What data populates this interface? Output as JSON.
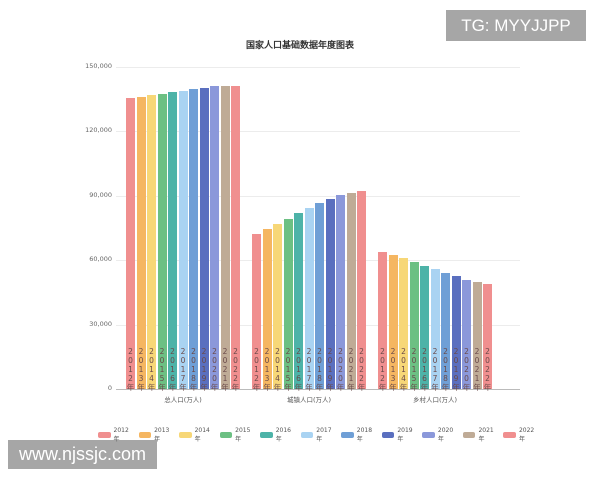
{
  "badges": {
    "tg": "TG: MYYJJPP",
    "web": "www.njssjc.com"
  },
  "chart_data": {
    "type": "bar",
    "title": "国家人口基础数据年度图表",
    "xlabel": "",
    "ylabel": "",
    "ylim": [
      0,
      150000
    ],
    "yticks": [
      "0",
      "30,000",
      "60,000",
      "90,000",
      "120,000",
      "150,000"
    ],
    "grid": true,
    "legend_position": "bottom",
    "categories": [
      "总人口(万人)",
      "城镇人口(万人)",
      "乡村人口(万人)"
    ],
    "series": [
      {
        "name": "2012年",
        "color": "#f08f8f",
        "values": [
          135404,
          72175,
          63747
        ]
      },
      {
        "name": "2013年",
        "color": "#f5b661",
        "values": [
          136072,
          74502,
          62224
        ]
      },
      {
        "name": "2014年",
        "color": "#f7d777",
        "values": [
          136782,
          76738,
          60908
        ]
      },
      {
        "name": "2015年",
        "color": "#6cc083",
        "values": [
          137462,
          79302,
          58973
        ]
      },
      {
        "name": "2016年",
        "color": "#4db3a8",
        "values": [
          138271,
          81924,
          57308
        ]
      },
      {
        "name": "2017年",
        "color": "#a9d3f2",
        "values": [
          139008,
          84343,
          55668
        ]
      },
      {
        "name": "2018年",
        "color": "#6f9fd6",
        "values": [
          139538,
          86433,
          54108
        ]
      },
      {
        "name": "2019年",
        "color": "#5a6fbf",
        "values": [
          140005,
          88426,
          52582
        ]
      },
      {
        "name": "2020年",
        "color": "#8b98da",
        "values": [
          141212,
          90220,
          50992
        ]
      },
      {
        "name": "2021年",
        "color": "#bfab96",
        "values": [
          141260,
          91425,
          49835
        ]
      },
      {
        "name": "2022年",
        "color": "#f08f8f",
        "values": [
          141175,
          92071,
          49104
        ]
      }
    ]
  }
}
